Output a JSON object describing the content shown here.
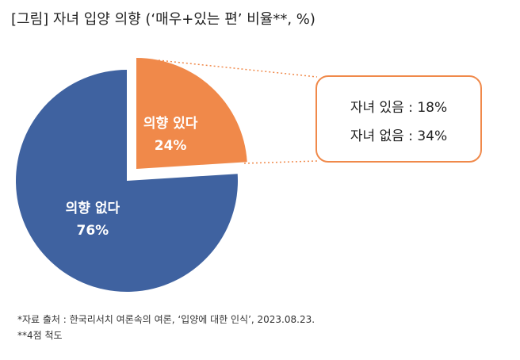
{
  "title": "[그림] 자녀 입양 의향 (‘매우+있는 편’ 비율**, %)",
  "chart_data": {
    "type": "pie",
    "slices": [
      {
        "label": "의향 있다",
        "value": 24,
        "value_label": "24%",
        "color": "#f0894a"
      },
      {
        "label": "의향 없다",
        "value": 76,
        "value_label": "76%",
        "color": "#3f62a0"
      }
    ]
  },
  "callout": {
    "line1": "자녀 있음 : 18%",
    "line2": "자녀 없음 : 34%"
  },
  "footnotes": {
    "source": "*자료 출처 : 한국리서치 여론속의 여론, ‘입양에 대한 인식’, 2023.08.23.",
    "scale": "**4점 척도"
  }
}
